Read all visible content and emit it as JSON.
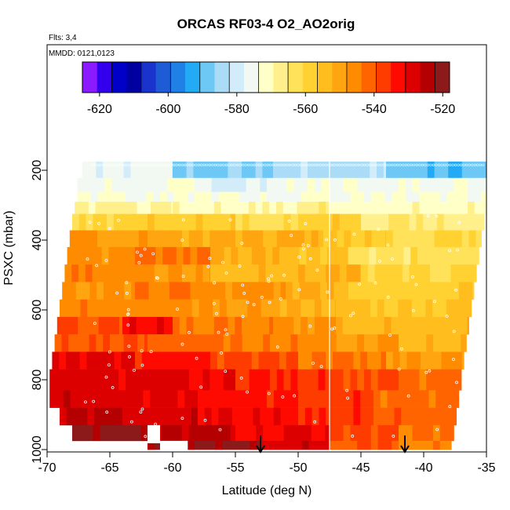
{
  "chart_data": {
    "type": "heatmap",
    "title": "ORCAS RF03-4 O2_AO2orig",
    "subtitle_flights": "Flts: 3,4",
    "subtitle_dates": "MMDD: 0121,0123",
    "xlabel": "Latitude (deg N)",
    "ylabel": "PSXC (mbar)",
    "xlim": [
      -70,
      -35
    ],
    "ylim": [
      1000,
      80
    ],
    "x_ticks": [
      -70,
      -65,
      -60,
      -55,
      -50,
      -45,
      -40,
      -35
    ],
    "x_tick_labels": [
      "-70",
      "-65",
      "-60",
      "-55",
      "-50",
      "-45",
      "-40",
      "-35"
    ],
    "y_ticks": [
      200,
      400,
      600,
      800,
      1000
    ],
    "y_tick_labels": [
      "200",
      "400",
      "600",
      "800",
      "1000"
    ],
    "colorbar": {
      "min": -625,
      "max": -518,
      "ticks": [
        -620,
        -600,
        -580,
        -560,
        -540,
        -520
      ],
      "tick_labels": [
        "-620",
        "-600",
        "-580",
        "-560",
        "-540",
        "-520"
      ],
      "colors": [
        "#8c1aff",
        "#3300ee",
        "#0000c8",
        "#0000a0",
        "#1a33cc",
        "#1e5cd6",
        "#2080e6",
        "#22aaf5",
        "#6ec8f5",
        "#aadcf8",
        "#d2ecfa",
        "#f2f8f2",
        "#ffffc8",
        "#fff08c",
        "#ffe15a",
        "#ffd232",
        "#ffbe1e",
        "#ffa50f",
        "#ff8c00",
        "#ff6400",
        "#ff3c00",
        "#ff0a00",
        "#dc0000",
        "#b40000",
        "#8c1a1a"
      ]
    },
    "layers": [
      {
        "p": [
          175,
          222
        ],
        "lat": [
          -67.2,
          -35.0
        ],
        "segs": [
          [
            -67.2,
            -60,
            -576
          ],
          [
            -60,
            -52,
            -587
          ],
          [
            -52,
            -43,
            -584
          ],
          [
            -43,
            -35,
            -589
          ]
        ]
      },
      {
        "p": [
          222,
          262
        ],
        "lat": [
          -67.6,
          -35.0
        ],
        "segs": [
          [
            -67.6,
            -58,
            -575
          ],
          [
            -58,
            -52,
            -578
          ],
          [
            -52,
            -47.5,
            -574
          ],
          [
            -47.5,
            -35,
            -575
          ]
        ]
      },
      {
        "p": [
          262,
          290
        ],
        "lat": [
          -67.6,
          -35.0
        ],
        "segs": [
          [
            -67.6,
            -58,
            -572
          ],
          [
            -58,
            -47.5,
            -573
          ],
          [
            -47.5,
            -35,
            -574
          ]
        ]
      },
      {
        "p": [
          290,
          325
        ],
        "lat": [
          -67.8,
          -35.0
        ],
        "segs": [
          [
            -67.8,
            -60,
            -569
          ],
          [
            -60,
            -50,
            -570
          ],
          [
            -50,
            -47.5,
            -566
          ],
          [
            -47.5,
            -35,
            -571
          ]
        ]
      },
      {
        "p": [
          325,
          372
        ],
        "lat": [
          -68.0,
          -35.2
        ],
        "segs": [
          [
            -68,
            -62,
            -560
          ],
          [
            -62,
            -55,
            -558
          ],
          [
            -55,
            -50,
            -562
          ],
          [
            -50,
            -45,
            -558
          ],
          [
            -45,
            -35.2,
            -565
          ]
        ]
      },
      {
        "p": [
          372,
          420
        ],
        "lat": [
          -68.2,
          -35.4
        ],
        "segs": [
          [
            -68.2,
            -62,
            -548
          ],
          [
            -62,
            -55,
            -550
          ],
          [
            -55,
            -48,
            -553
          ],
          [
            -48,
            -43,
            -557
          ],
          [
            -43,
            -35.4,
            -560
          ]
        ]
      },
      {
        "p": [
          420,
          470
        ],
        "lat": [
          -68.4,
          -35.6
        ],
        "segs": [
          [
            -68.4,
            -63,
            -546
          ],
          [
            -63,
            -57,
            -543
          ],
          [
            -57,
            -51,
            -552
          ],
          [
            -51,
            -46,
            -555
          ],
          [
            -46,
            -35.6,
            -563
          ]
        ]
      },
      {
        "p": [
          470,
          520
        ],
        "lat": [
          -68.6,
          -35.8
        ],
        "segs": [
          [
            -68.6,
            -62,
            -545
          ],
          [
            -62,
            -57,
            -548
          ],
          [
            -57,
            -50,
            -554
          ],
          [
            -50,
            -45,
            -551
          ],
          [
            -45,
            -35.8,
            -560
          ]
        ]
      },
      {
        "p": [
          520,
          570
        ],
        "lat": [
          -68.8,
          -36.0
        ],
        "segs": [
          [
            -68.8,
            -63,
            -547
          ],
          [
            -63,
            -58,
            -544
          ],
          [
            -58,
            -51,
            -547
          ],
          [
            -51,
            -46,
            -551
          ],
          [
            -46,
            -36,
            -558
          ]
        ]
      },
      {
        "p": [
          570,
          620
        ],
        "lat": [
          -69.0,
          -36.2
        ],
        "segs": [
          [
            -69,
            -64,
            -545
          ],
          [
            -64,
            -59,
            -546
          ],
          [
            -59,
            -52,
            -549
          ],
          [
            -52,
            -47,
            -552
          ],
          [
            -47,
            -36.2,
            -556
          ]
        ]
      },
      {
        "p": [
          620,
          670
        ],
        "lat": [
          -69.2,
          -36.4
        ],
        "segs": [
          [
            -69.2,
            -64,
            -538
          ],
          [
            -64,
            -60,
            -532
          ],
          [
            -60,
            -52,
            -544
          ],
          [
            -52,
            -47,
            -548
          ],
          [
            -47,
            -36.4,
            -554
          ]
        ]
      },
      {
        "p": [
          670,
          720
        ],
        "lat": [
          -69.4,
          -36.6
        ],
        "segs": [
          [
            -69.4,
            -62,
            -540
          ],
          [
            -62,
            -55,
            -542
          ],
          [
            -55,
            -47.5,
            -545
          ],
          [
            -47.5,
            -42,
            -548
          ],
          [
            -42,
            -36.6,
            -552
          ]
        ]
      },
      {
        "p": [
          720,
          770
        ],
        "lat": [
          -69.6,
          -36.8
        ],
        "segs": [
          [
            -69.6,
            -63,
            -530
          ],
          [
            -63,
            -57,
            -533
          ],
          [
            -57,
            -50,
            -538
          ],
          [
            -50,
            -43,
            -544
          ],
          [
            -43,
            -36.8,
            -548
          ]
        ]
      },
      {
        "p": [
          770,
          830
        ],
        "lat": [
          -69.8,
          -37.0
        ],
        "segs": [
          [
            -69.8,
            -62,
            -529
          ],
          [
            -62,
            -55,
            -531
          ],
          [
            -55,
            -47.5,
            -535
          ],
          [
            -47.5,
            -42,
            -538
          ],
          [
            -42,
            -37,
            -543
          ]
        ]
      },
      {
        "p": [
          830,
          880
        ],
        "lat": [
          -69.8,
          -37.2
        ],
        "segs": [
          [
            -69.8,
            -64,
            -528
          ],
          [
            -64,
            -58,
            -530
          ],
          [
            -58,
            -50,
            -533
          ],
          [
            -50,
            -44,
            -537
          ],
          [
            -44,
            -37.2,
            -542
          ]
        ]
      },
      {
        "p": [
          880,
          930
        ],
        "lat": [
          -69.0,
          -37.4
        ],
        "segs": [
          [
            -69,
            -64,
            -525
          ],
          [
            -64,
            -58,
            -528
          ],
          [
            -58,
            -50,
            -532
          ],
          [
            -50,
            -44,
            -536
          ],
          [
            -44,
            -37.4,
            -541
          ]
        ]
      },
      {
        "p": [
          930,
          975
        ],
        "lat": [
          -68.0,
          -37.6
        ],
        "segs": [
          [
            -68,
            -62,
            -522
          ],
          [
            -62,
            -55,
            -526
          ],
          [
            -55,
            -47.5,
            -530
          ],
          [
            -47.5,
            -42,
            -538
          ],
          [
            -42,
            -37.6,
            -544
          ]
        ]
      },
      {
        "p": [
          975,
          1000
        ],
        "lat": [
          -62.0,
          -37.8
        ],
        "segs": [
          [
            -62,
            -61,
            -520
          ],
          [
            -58.8,
            -53,
            -522
          ],
          [
            -53,
            -47.5,
            -528
          ],
          [
            -47.5,
            -42,
            -540
          ],
          [
            -42,
            -37.8,
            -546
          ]
        ]
      }
    ],
    "vertical_line_lat": -47.5,
    "markers": [
      {
        "lat": -53.0,
        "label": "arrow"
      },
      {
        "lat": -41.5,
        "label": "arrow"
      }
    ]
  }
}
